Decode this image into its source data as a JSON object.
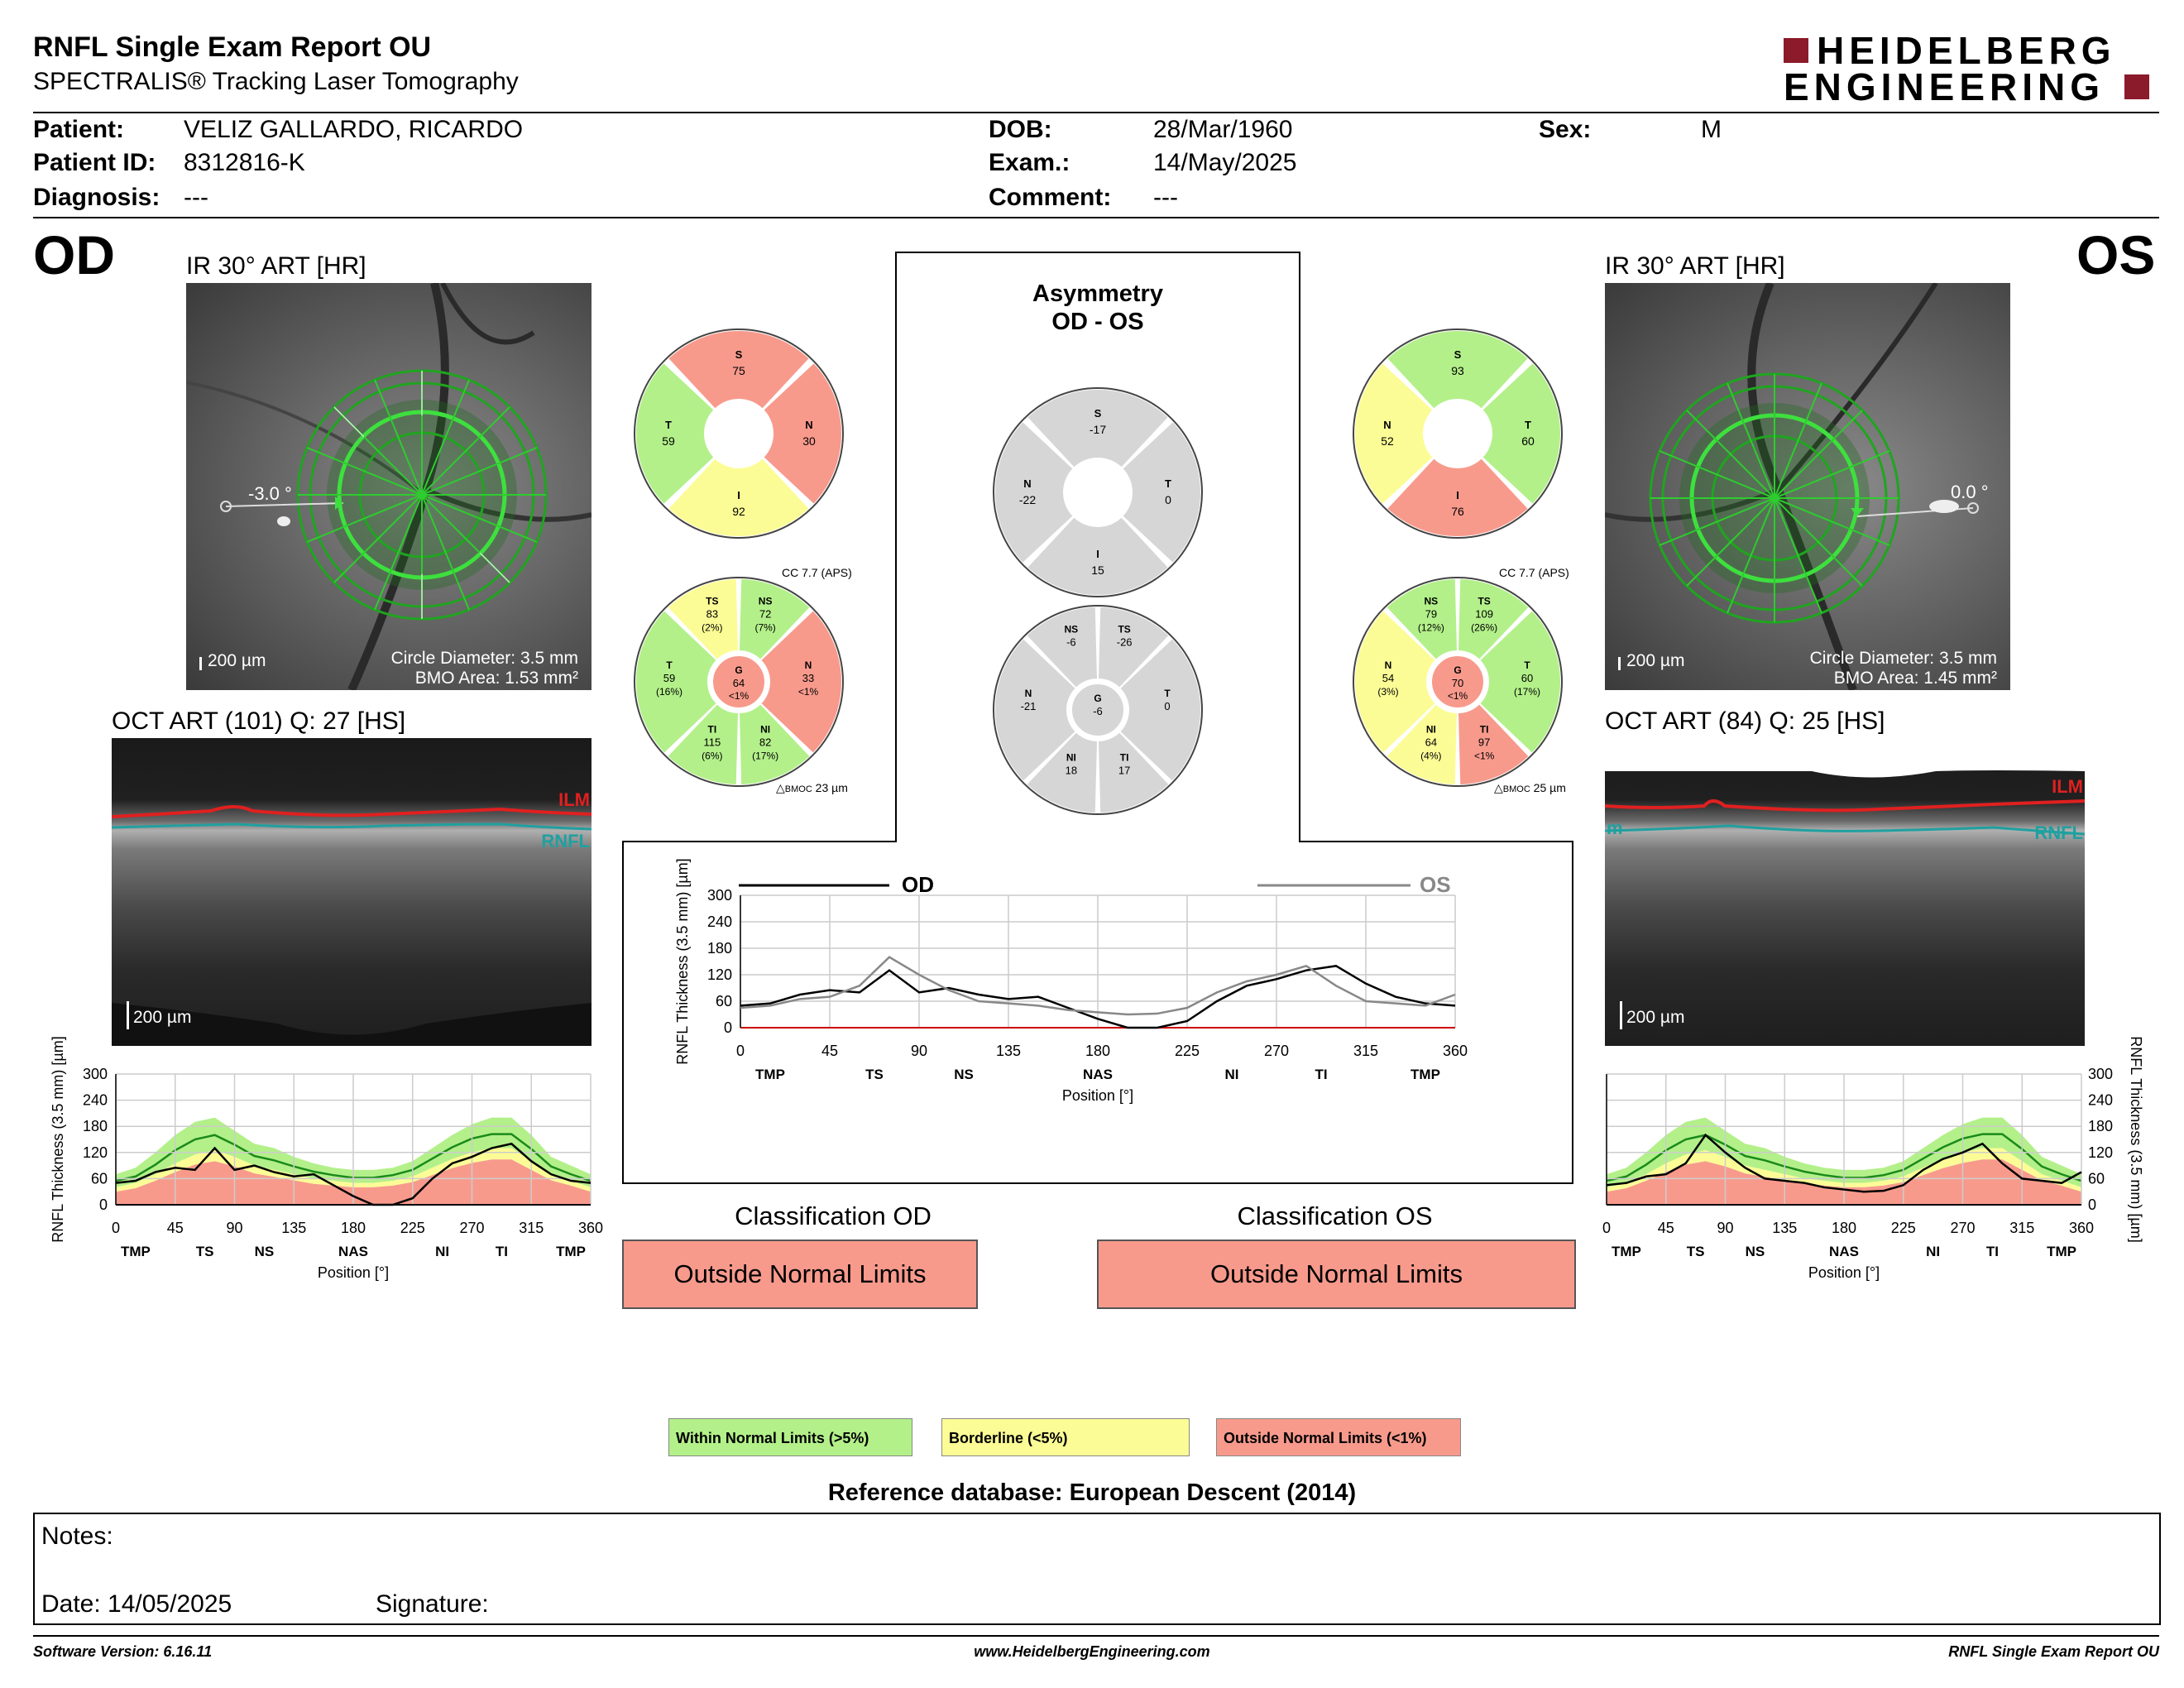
{
  "header": {
    "title": "RNFL Single Exam Report OU",
    "subtitle": "SPECTRALIS® Tracking Laser Tomography",
    "logo_line1": "HEIDELBERG",
    "logo_line2": "ENGINEERING"
  },
  "patient": {
    "patient_label": "Patient:",
    "patient_value": "VELIZ GALLARDO, RICARDO",
    "id_label": "Patient ID:",
    "id_value": "8312816-K",
    "diagnosis_label": "Diagnosis:",
    "diagnosis_value": "---",
    "dob_label": "DOB:",
    "dob_value": "28/Mar/1960",
    "exam_label": "Exam.:",
    "exam_value": "14/May/2025",
    "comment_label": "Comment:",
    "comment_value": "---",
    "sex_label": "Sex:",
    "sex_value": "M"
  },
  "od": {
    "eye": "OD",
    "ir_title": "IR 30° ART [HR]",
    "angle": "-3.0 °",
    "scale": "200 µm",
    "circle_diameter": "Circle Diameter: 3.5 mm",
    "bmo_area": "BMO Area: 1.53 mm²",
    "oct_title": "OCT ART (101) Q: 27 [HS]",
    "ilm": "ILM",
    "rnfl": "RNFL",
    "oct_scale": "200 µm",
    "quadrants": {
      "S": "75",
      "N": "30",
      "I": "92",
      "T": "59"
    },
    "cc": "CC 7.7 (APS)",
    "sectors": {
      "TS": [
        "83",
        "(2%)"
      ],
      "NS": [
        "72",
        "(7%)"
      ],
      "N": [
        "33",
        "<1%"
      ],
      "NI": [
        "82",
        "(17%)"
      ],
      "TI": [
        "115",
        "(6%)"
      ],
      "T": [
        "59",
        "(16%)"
      ],
      "G": [
        "64",
        "<1%"
      ]
    },
    "bmoc": "23 µm",
    "classification_title": "Classification OD",
    "classification": "Outside Normal Limits"
  },
  "os": {
    "eye": "OS",
    "ir_title": "IR 30° ART [HR]",
    "angle": "0.0 °",
    "scale": "200 µm",
    "circle_diameter": "Circle Diameter: 3.5 mm",
    "bmo_area": "BMO Area: 1.45 mm²",
    "oct_title": "OCT ART (84) Q: 25 [HS]",
    "ilm": "ILM",
    "rnfl": "RNFL",
    "rnfl_left": "m",
    "oct_scale": "200 µm",
    "quadrants": {
      "S": "93",
      "T": "60",
      "I": "76",
      "N": "52"
    },
    "cc": "CC 7.7 (APS)",
    "sectors": {
      "NS": [
        "79",
        "(12%)"
      ],
      "TS": [
        "109",
        "(26%)"
      ],
      "T": [
        "60",
        "(17%)"
      ],
      "TI": [
        "97",
        "<1%"
      ],
      "NI": [
        "64",
        "(4%)"
      ],
      "N": [
        "54",
        "(3%)"
      ],
      "G": [
        "70",
        "<1%"
      ]
    },
    "bmoc": "25 µm",
    "classification_title": "Classification OS",
    "classification": "Outside Normal Limits"
  },
  "asymmetry": {
    "title1": "Asymmetry",
    "title2": "OD - OS",
    "quadrants": {
      "S": "-17",
      "T": "0",
      "I": "15",
      "N": "-22"
    },
    "sectors": {
      "NS": "-6",
      "TS": "-26",
      "T": "0",
      "TI": "17",
      "NI": "18",
      "N": "-21",
      "G": "-6"
    }
  },
  "chart_data": [
    {
      "type": "line",
      "title": "",
      "xlabel": "Position [°]",
      "ylabel": "RNFL Thickness (3.5 mm) [µm]",
      "xlim": [
        0,
        360
      ],
      "ylim": [
        0,
        300
      ],
      "xticks": [
        0,
        45,
        90,
        135,
        180,
        225,
        270,
        315,
        360
      ],
      "yticks": [
        0,
        60,
        120,
        180,
        240,
        300
      ],
      "region_labels": [
        "TMP",
        "TS",
        "NS",
        "NAS",
        "NI",
        "TI",
        "TMP"
      ],
      "x": [
        0,
        15,
        30,
        45,
        60,
        75,
        90,
        105,
        120,
        135,
        150,
        165,
        180,
        195,
        210,
        225,
        240,
        255,
        270,
        285,
        300,
        315,
        330,
        345,
        360
      ],
      "series": [
        {
          "name": "OD",
          "values": [
            50,
            55,
            75,
            85,
            80,
            130,
            80,
            90,
            75,
            65,
            70,
            45,
            20,
            0,
            0,
            15,
            60,
            95,
            110,
            130,
            140,
            100,
            70,
            55,
            50
          ]
        },
        {
          "name": "OS",
          "values": [
            45,
            50,
            65,
            70,
            95,
            160,
            120,
            85,
            60,
            55,
            50,
            40,
            35,
            30,
            32,
            45,
            80,
            105,
            120,
            140,
            95,
            60,
            55,
            50,
            75
          ]
        }
      ],
      "grid": true
    },
    {
      "type": "area",
      "title": "",
      "xlabel": "Position [°]",
      "ylabel": "RNFL Thickness (3.5 mm) [µm]",
      "xlim": [
        0,
        360
      ],
      "ylim": [
        0,
        300
      ],
      "xticks": [
        0,
        45,
        90,
        135,
        180,
        225,
        270,
        315,
        360
      ],
      "yticks": [
        0,
        60,
        120,
        180,
        240,
        300
      ],
      "region_labels": [
        "TMP",
        "TS",
        "NS",
        "NAS",
        "NI",
        "TI",
        "TMP"
      ],
      "x": [
        0,
        15,
        30,
        45,
        60,
        75,
        90,
        105,
        120,
        135,
        150,
        165,
        180,
        195,
        210,
        225,
        240,
        255,
        270,
        285,
        300,
        315,
        330,
        345,
        360
      ],
      "series": [
        {
          "name": "OD",
          "values": [
            50,
            55,
            75,
            85,
            80,
            130,
            80,
            90,
            75,
            65,
            70,
            45,
            20,
            0,
            0,
            15,
            60,
            95,
            110,
            130,
            140,
            100,
            70,
            55,
            50
          ]
        }
      ],
      "grid": true
    },
    {
      "type": "area",
      "title": "",
      "xlabel": "Position [°]",
      "ylabel": "RNFL Thickness (3.5 mm) [µm]",
      "xlim": [
        0,
        360
      ],
      "ylim": [
        0,
        300
      ],
      "xticks": [
        0,
        45,
        90,
        135,
        180,
        225,
        270,
        315,
        360
      ],
      "yticks": [
        0,
        60,
        120,
        180,
        240,
        300
      ],
      "region_labels": [
        "TMP",
        "TS",
        "NS",
        "NAS",
        "NI",
        "TI",
        "TMP"
      ],
      "x": [
        0,
        15,
        30,
        45,
        60,
        75,
        90,
        105,
        120,
        135,
        150,
        165,
        180,
        195,
        210,
        225,
        240,
        255,
        270,
        285,
        300,
        315,
        330,
        345,
        360
      ],
      "series": [
        {
          "name": "OS",
          "values": [
            45,
            50,
            65,
            70,
            95,
            160,
            120,
            85,
            60,
            55,
            50,
            40,
            35,
            30,
            32,
            45,
            80,
            105,
            120,
            140,
            95,
            60,
            55,
            50,
            75
          ]
        }
      ],
      "grid": true
    }
  ],
  "normative": {
    "green_upper": [
      70,
      85,
      120,
      160,
      190,
      200,
      170,
      140,
      130,
      110,
      95,
      85,
      80,
      80,
      85,
      100,
      130,
      160,
      185,
      200,
      200,
      160,
      110,
      90,
      70
    ],
    "green_lower": [
      40,
      50,
      70,
      95,
      115,
      125,
      110,
      90,
      80,
      70,
      60,
      55,
      50,
      50,
      55,
      65,
      85,
      105,
      120,
      130,
      130,
      100,
      70,
      55,
      40
    ],
    "yellow_lower": [
      30,
      38,
      55,
      75,
      92,
      100,
      88,
      72,
      64,
      56,
      48,
      44,
      40,
      40,
      44,
      52,
      68,
      84,
      96,
      104,
      104,
      80,
      56,
      44,
      30
    ],
    "red_lower": [
      22,
      30,
      42,
      58,
      72,
      80,
      70,
      58,
      50,
      44,
      38,
      34,
      30,
      30,
      34,
      40,
      54,
      68,
      78,
      84,
      84,
      64,
      44,
      34,
      22
    ],
    "mean": [
      55,
      65,
      92,
      125,
      150,
      160,
      138,
      112,
      102,
      88,
      76,
      68,
      62,
      62,
      68,
      80,
      106,
      132,
      152,
      162,
      162,
      128,
      88,
      70,
      55
    ]
  },
  "legend": {
    "within": "Within Normal Limits (>5%)",
    "borderline": "Borderline (<5%)",
    "outside": "Outside Normal Limits (<1%)",
    "reference": "Reference database: European Descent (2014)"
  },
  "notes": {
    "notes_label": "Notes:",
    "date_label": "Date: 14/05/2025",
    "signature_label": "Signature:"
  },
  "footer": {
    "software": "Software Version: 6.16.11",
    "website": "www.HeidelbergEngineering.com",
    "report": "RNFL Single Exam Report OU"
  },
  "colors": {
    "green": "#b3f08a",
    "yellow": "#fcfc96",
    "red": "#f79a8c",
    "gray": "#d6d6d6",
    "logo": "#8b1a2b",
    "ilm": "#e02020",
    "rnfl": "#20a0a0"
  }
}
